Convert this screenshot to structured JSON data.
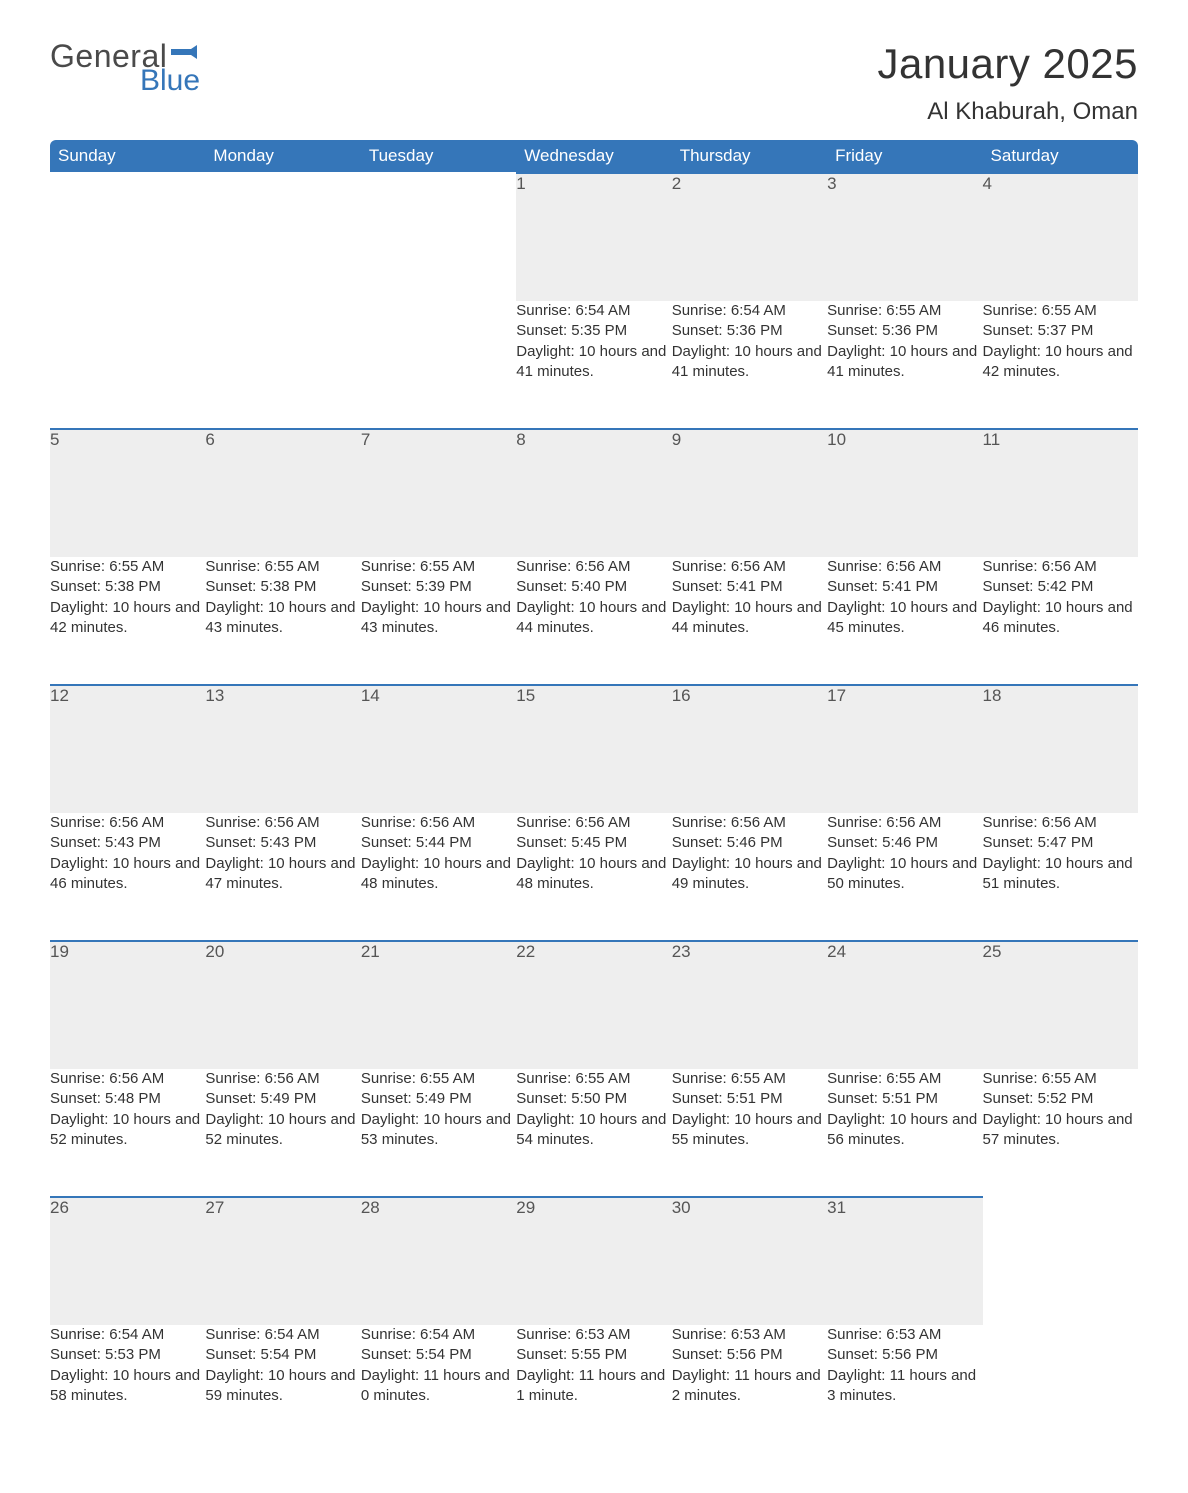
{
  "brand": {
    "word1": "General",
    "word2": "Blue",
    "accent_color": "#3576b9"
  },
  "title": "January 2025",
  "location": "Al Khaburah, Oman",
  "colors": {
    "header_bg": "#3576b9",
    "header_text": "#ffffff",
    "daynum_bg": "#eeeeee",
    "daynum_border": "#3576b9",
    "body_text": "#333333",
    "background": "#ffffff"
  },
  "typography": {
    "title_fontsize": 42,
    "location_fontsize": 24,
    "weekday_fontsize": 17,
    "daynum_fontsize": 17,
    "detail_fontsize": 15
  },
  "weekdays": [
    "Sunday",
    "Monday",
    "Tuesday",
    "Wednesday",
    "Thursday",
    "Friday",
    "Saturday"
  ],
  "weeks": [
    [
      null,
      null,
      null,
      {
        "n": "1",
        "sunrise": "6:54 AM",
        "sunset": "5:35 PM",
        "daylight": "10 hours and 41 minutes."
      },
      {
        "n": "2",
        "sunrise": "6:54 AM",
        "sunset": "5:36 PM",
        "daylight": "10 hours and 41 minutes."
      },
      {
        "n": "3",
        "sunrise": "6:55 AM",
        "sunset": "5:36 PM",
        "daylight": "10 hours and 41 minutes."
      },
      {
        "n": "4",
        "sunrise": "6:55 AM",
        "sunset": "5:37 PM",
        "daylight": "10 hours and 42 minutes."
      }
    ],
    [
      {
        "n": "5",
        "sunrise": "6:55 AM",
        "sunset": "5:38 PM",
        "daylight": "10 hours and 42 minutes."
      },
      {
        "n": "6",
        "sunrise": "6:55 AM",
        "sunset": "5:38 PM",
        "daylight": "10 hours and 43 minutes."
      },
      {
        "n": "7",
        "sunrise": "6:55 AM",
        "sunset": "5:39 PM",
        "daylight": "10 hours and 43 minutes."
      },
      {
        "n": "8",
        "sunrise": "6:56 AM",
        "sunset": "5:40 PM",
        "daylight": "10 hours and 44 minutes."
      },
      {
        "n": "9",
        "sunrise": "6:56 AM",
        "sunset": "5:41 PM",
        "daylight": "10 hours and 44 minutes."
      },
      {
        "n": "10",
        "sunrise": "6:56 AM",
        "sunset": "5:41 PM",
        "daylight": "10 hours and 45 minutes."
      },
      {
        "n": "11",
        "sunrise": "6:56 AM",
        "sunset": "5:42 PM",
        "daylight": "10 hours and 46 minutes."
      }
    ],
    [
      {
        "n": "12",
        "sunrise": "6:56 AM",
        "sunset": "5:43 PM",
        "daylight": "10 hours and 46 minutes."
      },
      {
        "n": "13",
        "sunrise": "6:56 AM",
        "sunset": "5:43 PM",
        "daylight": "10 hours and 47 minutes."
      },
      {
        "n": "14",
        "sunrise": "6:56 AM",
        "sunset": "5:44 PM",
        "daylight": "10 hours and 48 minutes."
      },
      {
        "n": "15",
        "sunrise": "6:56 AM",
        "sunset": "5:45 PM",
        "daylight": "10 hours and 48 minutes."
      },
      {
        "n": "16",
        "sunrise": "6:56 AM",
        "sunset": "5:46 PM",
        "daylight": "10 hours and 49 minutes."
      },
      {
        "n": "17",
        "sunrise": "6:56 AM",
        "sunset": "5:46 PM",
        "daylight": "10 hours and 50 minutes."
      },
      {
        "n": "18",
        "sunrise": "6:56 AM",
        "sunset": "5:47 PM",
        "daylight": "10 hours and 51 minutes."
      }
    ],
    [
      {
        "n": "19",
        "sunrise": "6:56 AM",
        "sunset": "5:48 PM",
        "daylight": "10 hours and 52 minutes."
      },
      {
        "n": "20",
        "sunrise": "6:56 AM",
        "sunset": "5:49 PM",
        "daylight": "10 hours and 52 minutes."
      },
      {
        "n": "21",
        "sunrise": "6:55 AM",
        "sunset": "5:49 PM",
        "daylight": "10 hours and 53 minutes."
      },
      {
        "n": "22",
        "sunrise": "6:55 AM",
        "sunset": "5:50 PM",
        "daylight": "10 hours and 54 minutes."
      },
      {
        "n": "23",
        "sunrise": "6:55 AM",
        "sunset": "5:51 PM",
        "daylight": "10 hours and 55 minutes."
      },
      {
        "n": "24",
        "sunrise": "6:55 AM",
        "sunset": "5:51 PM",
        "daylight": "10 hours and 56 minutes."
      },
      {
        "n": "25",
        "sunrise": "6:55 AM",
        "sunset": "5:52 PM",
        "daylight": "10 hours and 57 minutes."
      }
    ],
    [
      {
        "n": "26",
        "sunrise": "6:54 AM",
        "sunset": "5:53 PM",
        "daylight": "10 hours and 58 minutes."
      },
      {
        "n": "27",
        "sunrise": "6:54 AM",
        "sunset": "5:54 PM",
        "daylight": "10 hours and 59 minutes."
      },
      {
        "n": "28",
        "sunrise": "6:54 AM",
        "sunset": "5:54 PM",
        "daylight": "11 hours and 0 minutes."
      },
      {
        "n": "29",
        "sunrise": "6:53 AM",
        "sunset": "5:55 PM",
        "daylight": "11 hours and 1 minute."
      },
      {
        "n": "30",
        "sunrise": "6:53 AM",
        "sunset": "5:56 PM",
        "daylight": "11 hours and 2 minutes."
      },
      {
        "n": "31",
        "sunrise": "6:53 AM",
        "sunset": "5:56 PM",
        "daylight": "11 hours and 3 minutes."
      },
      null
    ]
  ],
  "labels": {
    "sunrise": "Sunrise:",
    "sunset": "Sunset:",
    "daylight": "Daylight:"
  }
}
